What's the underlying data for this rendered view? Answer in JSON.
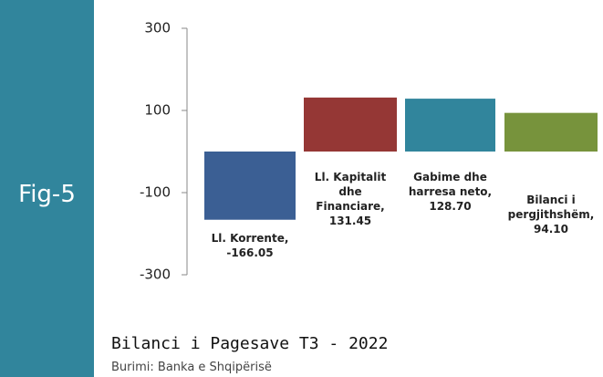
{
  "chart_data": {
    "type": "bar",
    "figure_label": "Fig-5",
    "title": "Bilanci i Pagesave T3 - 2022",
    "source": "Burimi: Banka e Shqipërisë",
    "categories": [
      "Ll. Korrente,",
      "Ll. Kapitalit dhe Financiare,",
      "Gabime dhe harresa neto,",
      "Bilanci i pergjithshëm,"
    ],
    "values": [
      -166.05,
      131.45,
      128.7,
      94.1
    ],
    "value_labels": [
      "-166.05",
      "131.45",
      "128.70",
      "94.10"
    ],
    "colors": [
      "#3b5f94",
      "#953735",
      "#31859c",
      "#77933c"
    ],
    "ylim": [
      -300,
      300
    ],
    "yticks": [
      -300,
      -100,
      100,
      300
    ],
    "grid": false
  }
}
